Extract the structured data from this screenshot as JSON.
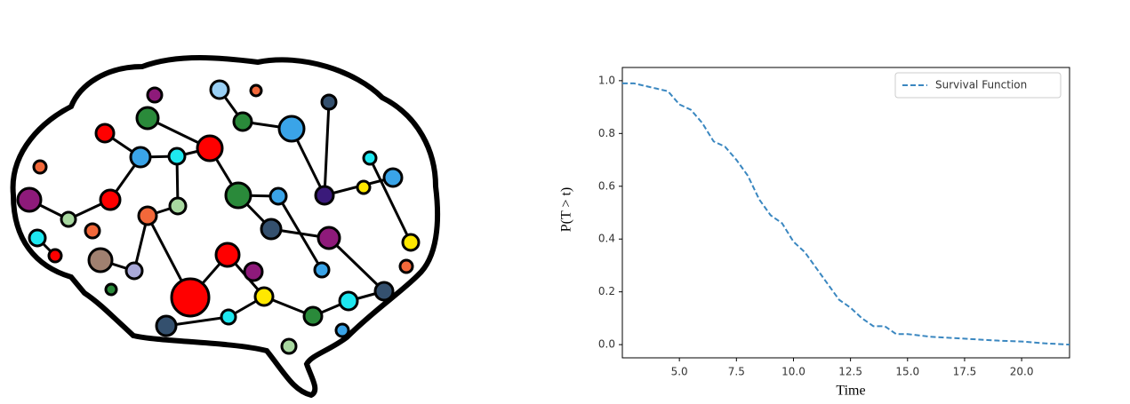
{
  "chart_data": {
    "type": "line",
    "xlabel": "Time",
    "ylabel": "P(T > t)",
    "x": [
      2.5,
      3.0,
      3.5,
      4.0,
      4.5,
      5.0,
      5.5,
      6.0,
      6.5,
      7.0,
      7.5,
      8.0,
      8.5,
      9.0,
      9.5,
      10.0,
      10.5,
      11.0,
      11.5,
      12.0,
      12.5,
      13.0,
      13.5,
      14.0,
      14.5,
      15.0,
      15.5,
      16.0,
      17.0,
      18.0,
      19.0,
      20.0,
      21.0,
      22.1
    ],
    "series": [
      {
        "name": "Survival Function",
        "color": "#3a87c0",
        "values": [
          0.99,
          0.99,
          0.98,
          0.97,
          0.96,
          0.91,
          0.89,
          0.84,
          0.77,
          0.75,
          0.7,
          0.64,
          0.55,
          0.49,
          0.46,
          0.39,
          0.35,
          0.29,
          0.23,
          0.17,
          0.14,
          0.1,
          0.07,
          0.07,
          0.04,
          0.04,
          0.035,
          0.03,
          0.025,
          0.02,
          0.015,
          0.012,
          0.005,
          0.0
        ]
      }
    ],
    "xlim": [
      2.5,
      22.1
    ],
    "ylim": [
      -0.05,
      1.05
    ],
    "xticks": [
      {
        "value": 5,
        "label": "5.0"
      },
      {
        "value": 7.5,
        "label": "7.5"
      },
      {
        "value": 10,
        "label": "10.0"
      },
      {
        "value": 12.5,
        "label": "12.5"
      },
      {
        "value": 15,
        "label": "15.0"
      },
      {
        "value": 17.5,
        "label": "17.5"
      },
      {
        "value": 20,
        "label": "20.0"
      }
    ],
    "yticks": [
      {
        "value": 0,
        "label": "0.0"
      },
      0.2,
      0.4,
      0.6,
      0.8,
      {
        "value": 1,
        "label": "1.0"
      }
    ],
    "legend": "upper right",
    "grid": false,
    "dashed": true
  }
}
